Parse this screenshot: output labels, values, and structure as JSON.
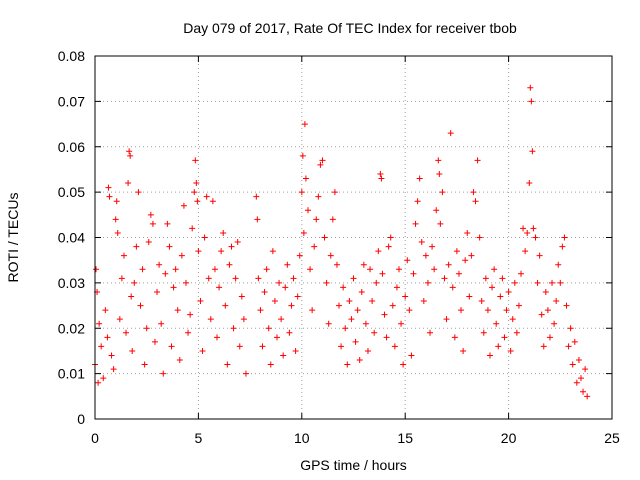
{
  "chart_data": {
    "type": "scatter",
    "title": "Day 079 of 2017, Rate Of TEC Index for receiver tbob",
    "xlabel": "GPS time / hours",
    "ylabel": "ROTI / TECUs",
    "xlim": [
      0,
      25
    ],
    "ylim": [
      0,
      0.08
    ],
    "x_ticks": [
      0,
      5,
      10,
      15,
      20,
      25
    ],
    "x_tick_labels": [
      "0",
      "5",
      "10",
      "15",
      "20",
      "25"
    ],
    "y_ticks": [
      0,
      0.01,
      0.02,
      0.03,
      0.04,
      0.05,
      0.06,
      0.07,
      0.08
    ],
    "y_tick_labels": [
      "0",
      "0.01",
      "0.02",
      "0.03",
      "0.04",
      "0.05",
      "0.06",
      "0.07",
      "0.08"
    ],
    "grid": true,
    "marker": "+",
    "color": "#ff0000",
    "series": [
      {
        "points": [
          [
            0.0,
            0.012
          ],
          [
            0.05,
            0.033
          ],
          [
            0.1,
            0.028
          ],
          [
            0.15,
            0.008
          ],
          [
            0.2,
            0.021
          ],
          [
            0.3,
            0.016
          ],
          [
            0.4,
            0.009
          ],
          [
            0.5,
            0.024
          ],
          [
            0.6,
            0.018
          ],
          [
            0.65,
            0.051
          ],
          [
            0.7,
            0.049
          ],
          [
            0.8,
            0.014
          ],
          [
            0.9,
            0.011
          ],
          [
            1.0,
            0.044
          ],
          [
            1.05,
            0.048
          ],
          [
            1.1,
            0.041
          ],
          [
            1.2,
            0.022
          ],
          [
            1.3,
            0.031
          ],
          [
            1.4,
            0.036
          ],
          [
            1.5,
            0.019
          ],
          [
            1.6,
            0.052
          ],
          [
            1.65,
            0.059
          ],
          [
            1.7,
            0.058
          ],
          [
            1.75,
            0.027
          ],
          [
            1.8,
            0.015
          ],
          [
            1.9,
            0.03
          ],
          [
            2.0,
            0.038
          ],
          [
            2.1,
            0.05
          ],
          [
            2.2,
            0.025
          ],
          [
            2.3,
            0.033
          ],
          [
            2.4,
            0.012
          ],
          [
            2.5,
            0.02
          ],
          [
            2.6,
            0.039
          ],
          [
            2.7,
            0.045
          ],
          [
            2.8,
            0.043
          ],
          [
            2.9,
            0.017
          ],
          [
            3.0,
            0.028
          ],
          [
            3.1,
            0.034
          ],
          [
            3.2,
            0.021
          ],
          [
            3.3,
            0.01
          ],
          [
            3.4,
            0.032
          ],
          [
            3.5,
            0.043
          ],
          [
            3.6,
            0.038
          ],
          [
            3.7,
            0.016
          ],
          [
            3.8,
            0.029
          ],
          [
            3.9,
            0.033
          ],
          [
            4.0,
            0.024
          ],
          [
            4.1,
            0.013
          ],
          [
            4.2,
            0.036
          ],
          [
            4.3,
            0.047
          ],
          [
            4.4,
            0.03
          ],
          [
            4.5,
            0.019
          ],
          [
            4.6,
            0.023
          ],
          [
            4.7,
            0.042
          ],
          [
            4.8,
            0.05
          ],
          [
            4.85,
            0.057
          ],
          [
            4.9,
            0.052
          ],
          [
            4.95,
            0.048
          ],
          [
            5.0,
            0.037
          ],
          [
            5.1,
            0.026
          ],
          [
            5.2,
            0.015
          ],
          [
            5.3,
            0.04
          ],
          [
            5.4,
            0.049
          ],
          [
            5.5,
            0.031
          ],
          [
            5.6,
            0.022
          ],
          [
            5.7,
            0.048
          ],
          [
            5.8,
            0.033
          ],
          [
            5.9,
            0.018
          ],
          [
            6.0,
            0.029
          ],
          [
            6.1,
            0.037
          ],
          [
            6.2,
            0.041
          ],
          [
            6.3,
            0.025
          ],
          [
            6.4,
            0.012
          ],
          [
            6.5,
            0.034
          ],
          [
            6.6,
            0.038
          ],
          [
            6.7,
            0.02
          ],
          [
            6.8,
            0.031
          ],
          [
            6.9,
            0.039
          ],
          [
            7.0,
            0.016
          ],
          [
            7.1,
            0.027
          ],
          [
            7.2,
            0.022
          ],
          [
            7.3,
            0.01
          ],
          [
            7.8,
            0.049
          ],
          [
            7.85,
            0.044
          ],
          [
            7.9,
            0.031
          ],
          [
            8.0,
            0.024
          ],
          [
            8.1,
            0.016
          ],
          [
            8.2,
            0.028
          ],
          [
            8.3,
            0.033
          ],
          [
            8.4,
            0.02
          ],
          [
            8.5,
            0.012
          ],
          [
            8.6,
            0.037
          ],
          [
            8.7,
            0.026
          ],
          [
            8.8,
            0.018
          ],
          [
            8.9,
            0.03
          ],
          [
            9.0,
            0.022
          ],
          [
            9.1,
            0.014
          ],
          [
            9.2,
            0.029
          ],
          [
            9.3,
            0.034
          ],
          [
            9.4,
            0.019
          ],
          [
            9.5,
            0.025
          ],
          [
            9.6,
            0.031
          ],
          [
            9.7,
            0.015
          ],
          [
            9.8,
            0.027
          ],
          [
            9.9,
            0.036
          ],
          [
            10.0,
            0.05
          ],
          [
            10.05,
            0.058
          ],
          [
            10.1,
            0.041
          ],
          [
            10.15,
            0.065
          ],
          [
            10.2,
            0.053
          ],
          [
            10.3,
            0.046
          ],
          [
            10.4,
            0.033
          ],
          [
            10.5,
            0.024
          ],
          [
            10.6,
            0.038
          ],
          [
            10.7,
            0.044
          ],
          [
            10.8,
            0.049
          ],
          [
            10.9,
            0.056
          ],
          [
            11.0,
            0.057
          ],
          [
            11.1,
            0.04
          ],
          [
            11.2,
            0.03
          ],
          [
            11.3,
            0.021
          ],
          [
            11.4,
            0.036
          ],
          [
            11.5,
            0.044
          ],
          [
            11.6,
            0.05
          ],
          [
            11.7,
            0.034
          ],
          [
            11.8,
            0.025
          ],
          [
            11.9,
            0.016
          ],
          [
            12.0,
            0.029
          ],
          [
            12.1,
            0.02
          ],
          [
            12.2,
            0.012
          ],
          [
            12.3,
            0.026
          ],
          [
            12.4,
            0.022
          ],
          [
            12.5,
            0.031
          ],
          [
            12.6,
            0.017
          ],
          [
            12.7,
            0.024
          ],
          [
            12.8,
            0.013
          ],
          [
            12.9,
            0.028
          ],
          [
            13.0,
            0.034
          ],
          [
            13.1,
            0.021
          ],
          [
            13.2,
            0.015
          ],
          [
            13.3,
            0.033
          ],
          [
            13.4,
            0.026
          ],
          [
            13.5,
            0.019
          ],
          [
            13.6,
            0.03
          ],
          [
            13.7,
            0.037
          ],
          [
            13.8,
            0.054
          ],
          [
            13.85,
            0.053
          ],
          [
            13.9,
            0.032
          ],
          [
            14.0,
            0.023
          ],
          [
            14.1,
            0.018
          ],
          [
            14.2,
            0.038
          ],
          [
            14.3,
            0.04
          ],
          [
            14.4,
            0.025
          ],
          [
            14.5,
            0.016
          ],
          [
            14.6,
            0.029
          ],
          [
            14.7,
            0.033
          ],
          [
            14.8,
            0.021
          ],
          [
            14.9,
            0.012
          ],
          [
            15.0,
            0.027
          ],
          [
            15.1,
            0.035
          ],
          [
            15.2,
            0.024
          ],
          [
            15.3,
            0.014
          ],
          [
            15.4,
            0.032
          ],
          [
            15.5,
            0.043
          ],
          [
            15.6,
            0.048
          ],
          [
            15.7,
            0.053
          ],
          [
            15.8,
            0.039
          ],
          [
            15.9,
            0.026
          ],
          [
            16.0,
            0.036
          ],
          [
            16.1,
            0.03
          ],
          [
            16.2,
            0.019
          ],
          [
            16.3,
            0.038
          ],
          [
            16.4,
            0.033
          ],
          [
            16.5,
            0.046
          ],
          [
            16.6,
            0.057
          ],
          [
            16.65,
            0.054
          ],
          [
            16.7,
            0.043
          ],
          [
            16.8,
            0.05
          ],
          [
            16.9,
            0.031
          ],
          [
            17.0,
            0.022
          ],
          [
            17.1,
            0.034
          ],
          [
            17.2,
            0.063
          ],
          [
            17.3,
            0.029
          ],
          [
            17.4,
            0.018
          ],
          [
            17.5,
            0.037
          ],
          [
            17.6,
            0.032
          ],
          [
            17.7,
            0.024
          ],
          [
            17.8,
            0.015
          ],
          [
            17.9,
            0.035
          ],
          [
            18.0,
            0.041
          ],
          [
            18.1,
            0.027
          ],
          [
            18.2,
            0.036
          ],
          [
            18.3,
            0.05
          ],
          [
            18.4,
            0.048
          ],
          [
            18.5,
            0.057
          ],
          [
            18.6,
            0.04
          ],
          [
            18.7,
            0.026
          ],
          [
            18.8,
            0.019
          ],
          [
            18.9,
            0.031
          ],
          [
            19.0,
            0.024
          ],
          [
            19.1,
            0.014
          ],
          [
            19.2,
            0.029
          ],
          [
            19.3,
            0.033
          ],
          [
            19.4,
            0.021
          ],
          [
            19.5,
            0.016
          ],
          [
            19.6,
            0.027
          ],
          [
            19.7,
            0.031
          ],
          [
            19.8,
            0.018
          ],
          [
            19.9,
            0.024
          ],
          [
            20.0,
            0.028
          ],
          [
            20.1,
            0.015
          ],
          [
            20.2,
            0.022
          ],
          [
            20.3,
            0.03
          ],
          [
            20.4,
            0.019
          ],
          [
            20.5,
            0.025
          ],
          [
            20.6,
            0.032
          ],
          [
            20.7,
            0.042
          ],
          [
            20.8,
            0.037
          ],
          [
            20.9,
            0.041
          ],
          [
            21.0,
            0.052
          ],
          [
            21.05,
            0.073
          ],
          [
            21.1,
            0.07
          ],
          [
            21.15,
            0.059
          ],
          [
            21.2,
            0.042
          ],
          [
            21.3,
            0.04
          ],
          [
            21.4,
            0.03
          ],
          [
            21.5,
            0.036
          ],
          [
            21.6,
            0.023
          ],
          [
            21.7,
            0.016
          ],
          [
            21.8,
            0.028
          ],
          [
            21.9,
            0.024
          ],
          [
            22.0,
            0.018
          ],
          [
            22.1,
            0.03
          ],
          [
            22.2,
            0.021
          ],
          [
            22.3,
            0.026
          ],
          [
            22.4,
            0.034
          ],
          [
            22.5,
            0.03
          ],
          [
            22.6,
            0.038
          ],
          [
            22.7,
            0.04
          ],
          [
            22.8,
            0.025
          ],
          [
            22.9,
            0.016
          ],
          [
            23.0,
            0.02
          ],
          [
            23.1,
            0.012
          ],
          [
            23.2,
            0.017
          ],
          [
            23.3,
            0.008
          ],
          [
            23.4,
            0.013
          ],
          [
            23.5,
            0.009
          ],
          [
            23.6,
            0.006
          ],
          [
            23.7,
            0.011
          ],
          [
            23.8,
            0.005
          ]
        ]
      }
    ]
  }
}
